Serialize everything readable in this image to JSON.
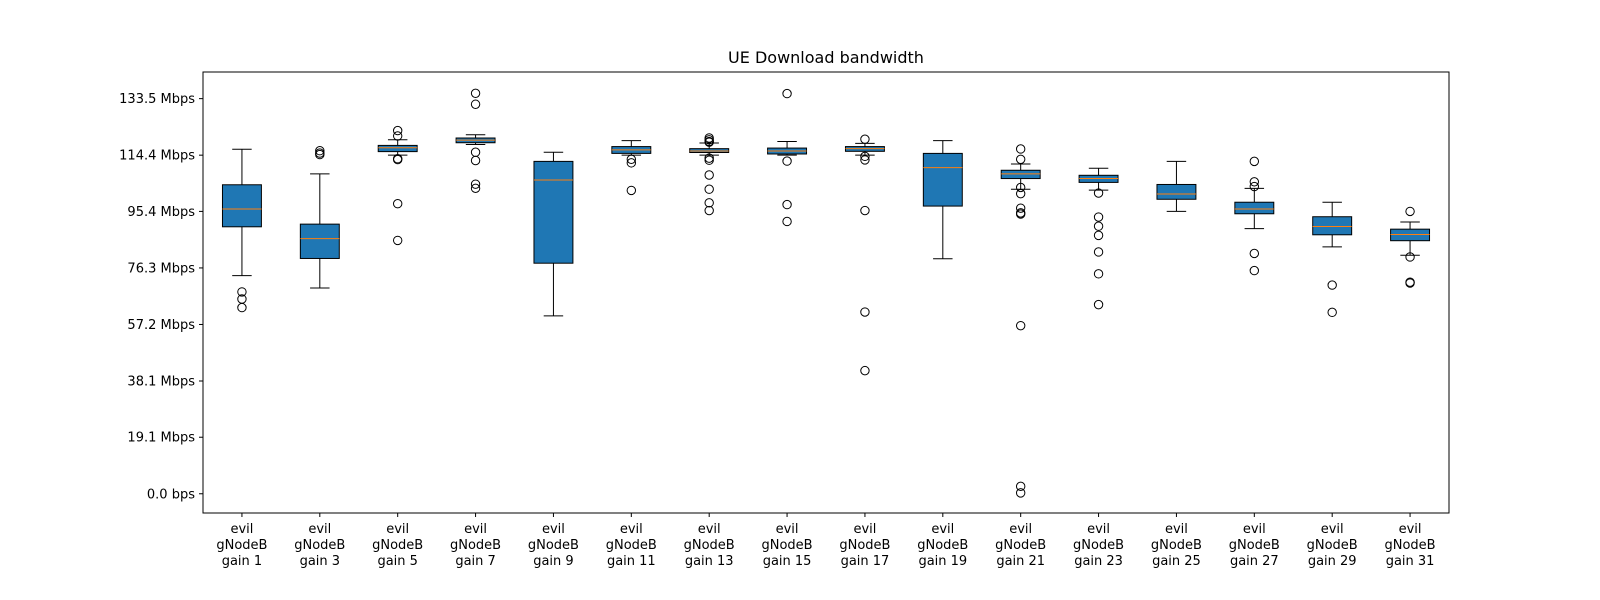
{
  "chart_data": {
    "type": "boxplot",
    "title": "UE Download bandwidth",
    "xlabel": "",
    "ylabel": "",
    "ylim": [
      -6.5,
      142.5
    ],
    "y_unit": "Mbps",
    "y_ticks": [
      0.0,
      19.1,
      38.1,
      57.2,
      76.3,
      95.4,
      114.4,
      133.5
    ],
    "y_tick_labels": [
      "0.0 bps",
      "19.1 Mbps",
      "38.1 Mbps",
      "57.2 Mbps",
      "76.3 Mbps",
      "95.4 Mbps",
      "114.4 Mbps",
      "133.5 Mbps"
    ],
    "grid": false,
    "legend": "none",
    "box_color": "#1f77b4",
    "median_color": "#ff7f0e",
    "categories": [
      "evil\ngNodeB\ngain 1",
      "evil\ngNodeB\ngain 3",
      "evil\ngNodeB\ngain 5",
      "evil\ngNodeB\ngain 7",
      "evil\ngNodeB\ngain 9",
      "evil\ngNodeB\ngain 11",
      "evil\ngNodeB\ngain 13",
      "evil\ngNodeB\ngain 15",
      "evil\ngNodeB\ngain 17",
      "evil\ngNodeB\ngain 19",
      "evil\ngNodeB\ngain 21",
      "evil\ngNodeB\ngain 23",
      "evil\ngNodeB\ngain 25",
      "evil\ngNodeB\ngain 27",
      "evil\ngNodeB\ngain 29",
      "evil\ngNodeB\ngain 31"
    ],
    "boxes": [
      {
        "whislo": 73.7,
        "q1": 90.2,
        "med": 96.2,
        "q3": 104.4,
        "whishi": 116.4,
        "fliers": [
          68.2,
          65.8,
          62.9
        ]
      },
      {
        "whislo": 69.5,
        "q1": 79.5,
        "med": 86.2,
        "q3": 91.1,
        "whishi": 108.1,
        "fliers": [
          115.9,
          115.1,
          114.6
        ]
      },
      {
        "whislo": 114.4,
        "q1": 115.6,
        "med": 116.9,
        "q3": 117.7,
        "whishi": 119.6,
        "fliers": [
          122.7,
          120.9,
          113.2,
          112.9,
          98.0,
          85.6
        ]
      },
      {
        "whislo": 118.0,
        "q1": 118.6,
        "med": 119.5,
        "q3": 120.2,
        "whishi": 121.3,
        "fliers": [
          135.3,
          131.6,
          115.4,
          112.6,
          104.6,
          103.2
        ]
      },
      {
        "whislo": 60.1,
        "q1": 77.9,
        "med": 106.0,
        "q3": 112.3,
        "whishi": 115.4,
        "fliers": []
      },
      {
        "whislo": 114.4,
        "q1": 115.0,
        "med": 116.2,
        "q3": 117.3,
        "whishi": 119.3,
        "fliers": [
          113.0,
          111.8,
          102.5
        ]
      },
      {
        "whislo": 114.4,
        "q1": 115.3,
        "med": 115.8,
        "q3": 116.6,
        "whishi": 118.5,
        "fliers": [
          120.2,
          119.6,
          119.0,
          118.8,
          113.4,
          112.7,
          107.7,
          102.9,
          98.3,
          95.7
        ]
      },
      {
        "whislo": 114.4,
        "q1": 114.8,
        "med": 115.8,
        "q3": 116.8,
        "whishi": 119.0,
        "fliers": [
          135.2,
          112.4,
          97.7,
          92.0
        ]
      },
      {
        "whislo": 114.4,
        "q1": 115.7,
        "med": 116.6,
        "q3": 117.3,
        "whishi": 118.4,
        "fliers": [
          119.8,
          114.0,
          112.8,
          95.7,
          61.4,
          41.6
        ]
      },
      {
        "whislo": 79.4,
        "q1": 97.2,
        "med": 110.2,
        "q3": 115.0,
        "whishi": 119.3,
        "fliers": []
      },
      {
        "whislo": 102.9,
        "q1": 106.5,
        "med": 108.1,
        "q3": 109.3,
        "whishi": 111.4,
        "fliers": [
          116.5,
          113.0,
          103.5,
          101.4,
          96.5,
          94.9,
          94.5,
          56.8,
          2.5,
          0.3
        ]
      },
      {
        "whislo": 102.6,
        "q1": 105.2,
        "med": 106.5,
        "q3": 107.6,
        "whishi": 110.0,
        "fliers": [
          101.6,
          93.5,
          90.4,
          87.3,
          81.7,
          74.3,
          63.9
        ]
      },
      {
        "whislo": 95.4,
        "q1": 99.5,
        "med": 101.3,
        "q3": 104.5,
        "whishi": 112.3,
        "fliers": []
      },
      {
        "whislo": 89.6,
        "q1": 94.6,
        "med": 96.2,
        "q3": 98.5,
        "whishi": 103.2,
        "fliers": [
          112.3,
          105.4,
          103.8,
          81.2,
          75.4
        ]
      },
      {
        "whislo": 83.4,
        "q1": 87.5,
        "med": 90.3,
        "q3": 93.6,
        "whishi": 98.5,
        "fliers": [
          70.5,
          61.3
        ]
      },
      {
        "whislo": 80.6,
        "q1": 85.5,
        "med": 87.6,
        "q3": 89.4,
        "whishi": 91.8,
        "fliers": [
          95.4,
          80.0,
          71.5,
          71.2
        ]
      }
    ]
  }
}
